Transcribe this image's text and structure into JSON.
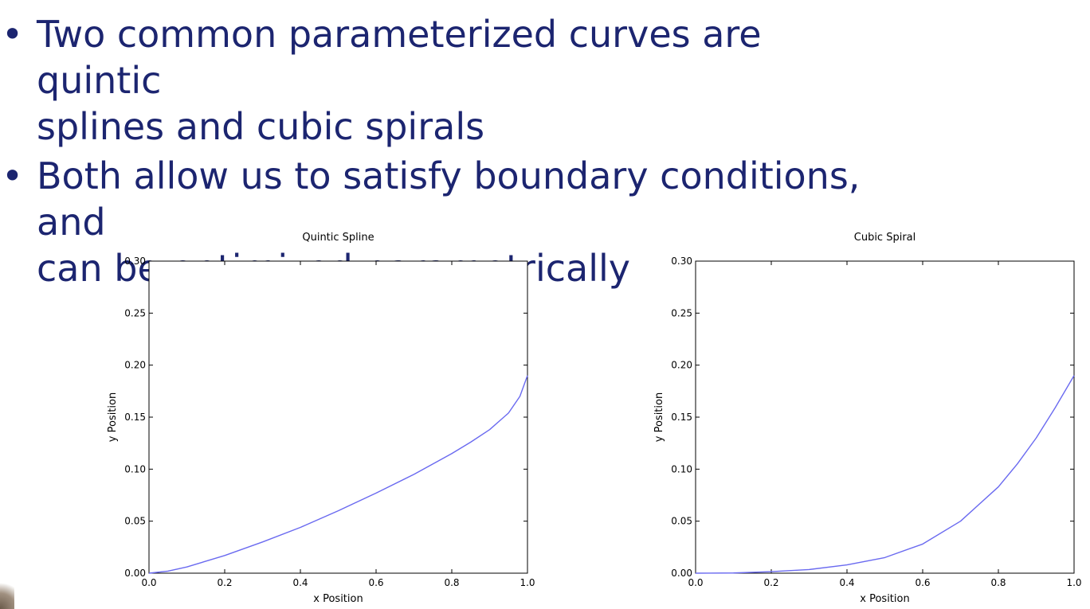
{
  "slide": {
    "bullets": [
      {
        "text": "Two common parameterized curves are quintic splines and cubic spirals"
      },
      {
        "text": "Both allow us to satisfy boundary conditions, and can be optimized parametrically"
      }
    ],
    "bullet_lines": [
      [
        "Two common parameterized curves are quintic",
        "splines and cubic spirals"
      ],
      [
        "Both allow us to satisfy boundary conditions, and",
        "can be optimized parametrically"
      ]
    ],
    "bullet_symbol": "•",
    "text_color": "#1c2570"
  },
  "chart_data": [
    {
      "type": "line",
      "title": "Quintic Spline",
      "xlabel": "x Position",
      "ylabel": "y Position",
      "xlim": [
        0.0,
        1.0
      ],
      "ylim": [
        0.0,
        0.3
      ],
      "xticks": [
        "0.0",
        "0.2",
        "0.4",
        "0.6",
        "0.8",
        "1.0"
      ],
      "yticks": [
        "0.00",
        "0.05",
        "0.10",
        "0.15",
        "0.20",
        "0.25",
        "0.30"
      ],
      "grid": false,
      "line_color": "#6a6af0",
      "series": [
        {
          "x": [
            0.0,
            0.05,
            0.1,
            0.2,
            0.3,
            0.4,
            0.5,
            0.6,
            0.7,
            0.8,
            0.85,
            0.9,
            0.95,
            0.98,
            1.0
          ],
          "y": [
            0.0,
            0.002,
            0.006,
            0.017,
            0.03,
            0.044,
            0.06,
            0.077,
            0.095,
            0.115,
            0.126,
            0.138,
            0.154,
            0.17,
            0.19
          ]
        }
      ]
    },
    {
      "type": "line",
      "title": "Cubic Spiral",
      "xlabel": "x Position",
      "ylabel": "y Position",
      "xlim": [
        0.0,
        1.0
      ],
      "ylim": [
        0.0,
        0.3
      ],
      "xticks": [
        "0.0",
        "0.2",
        "0.4",
        "0.6",
        "0.8",
        "1.0"
      ],
      "yticks": [
        "0.00",
        "0.05",
        "0.10",
        "0.15",
        "0.20",
        "0.25",
        "0.30"
      ],
      "grid": false,
      "line_color": "#6a6af0",
      "series": [
        {
          "x": [
            0.0,
            0.1,
            0.2,
            0.3,
            0.4,
            0.5,
            0.6,
            0.7,
            0.8,
            0.85,
            0.9,
            0.95,
            1.0
          ],
          "y": [
            0.0,
            0.0002,
            0.0015,
            0.0035,
            0.008,
            0.015,
            0.028,
            0.05,
            0.083,
            0.105,
            0.13,
            0.159,
            0.19
          ]
        }
      ]
    }
  ]
}
